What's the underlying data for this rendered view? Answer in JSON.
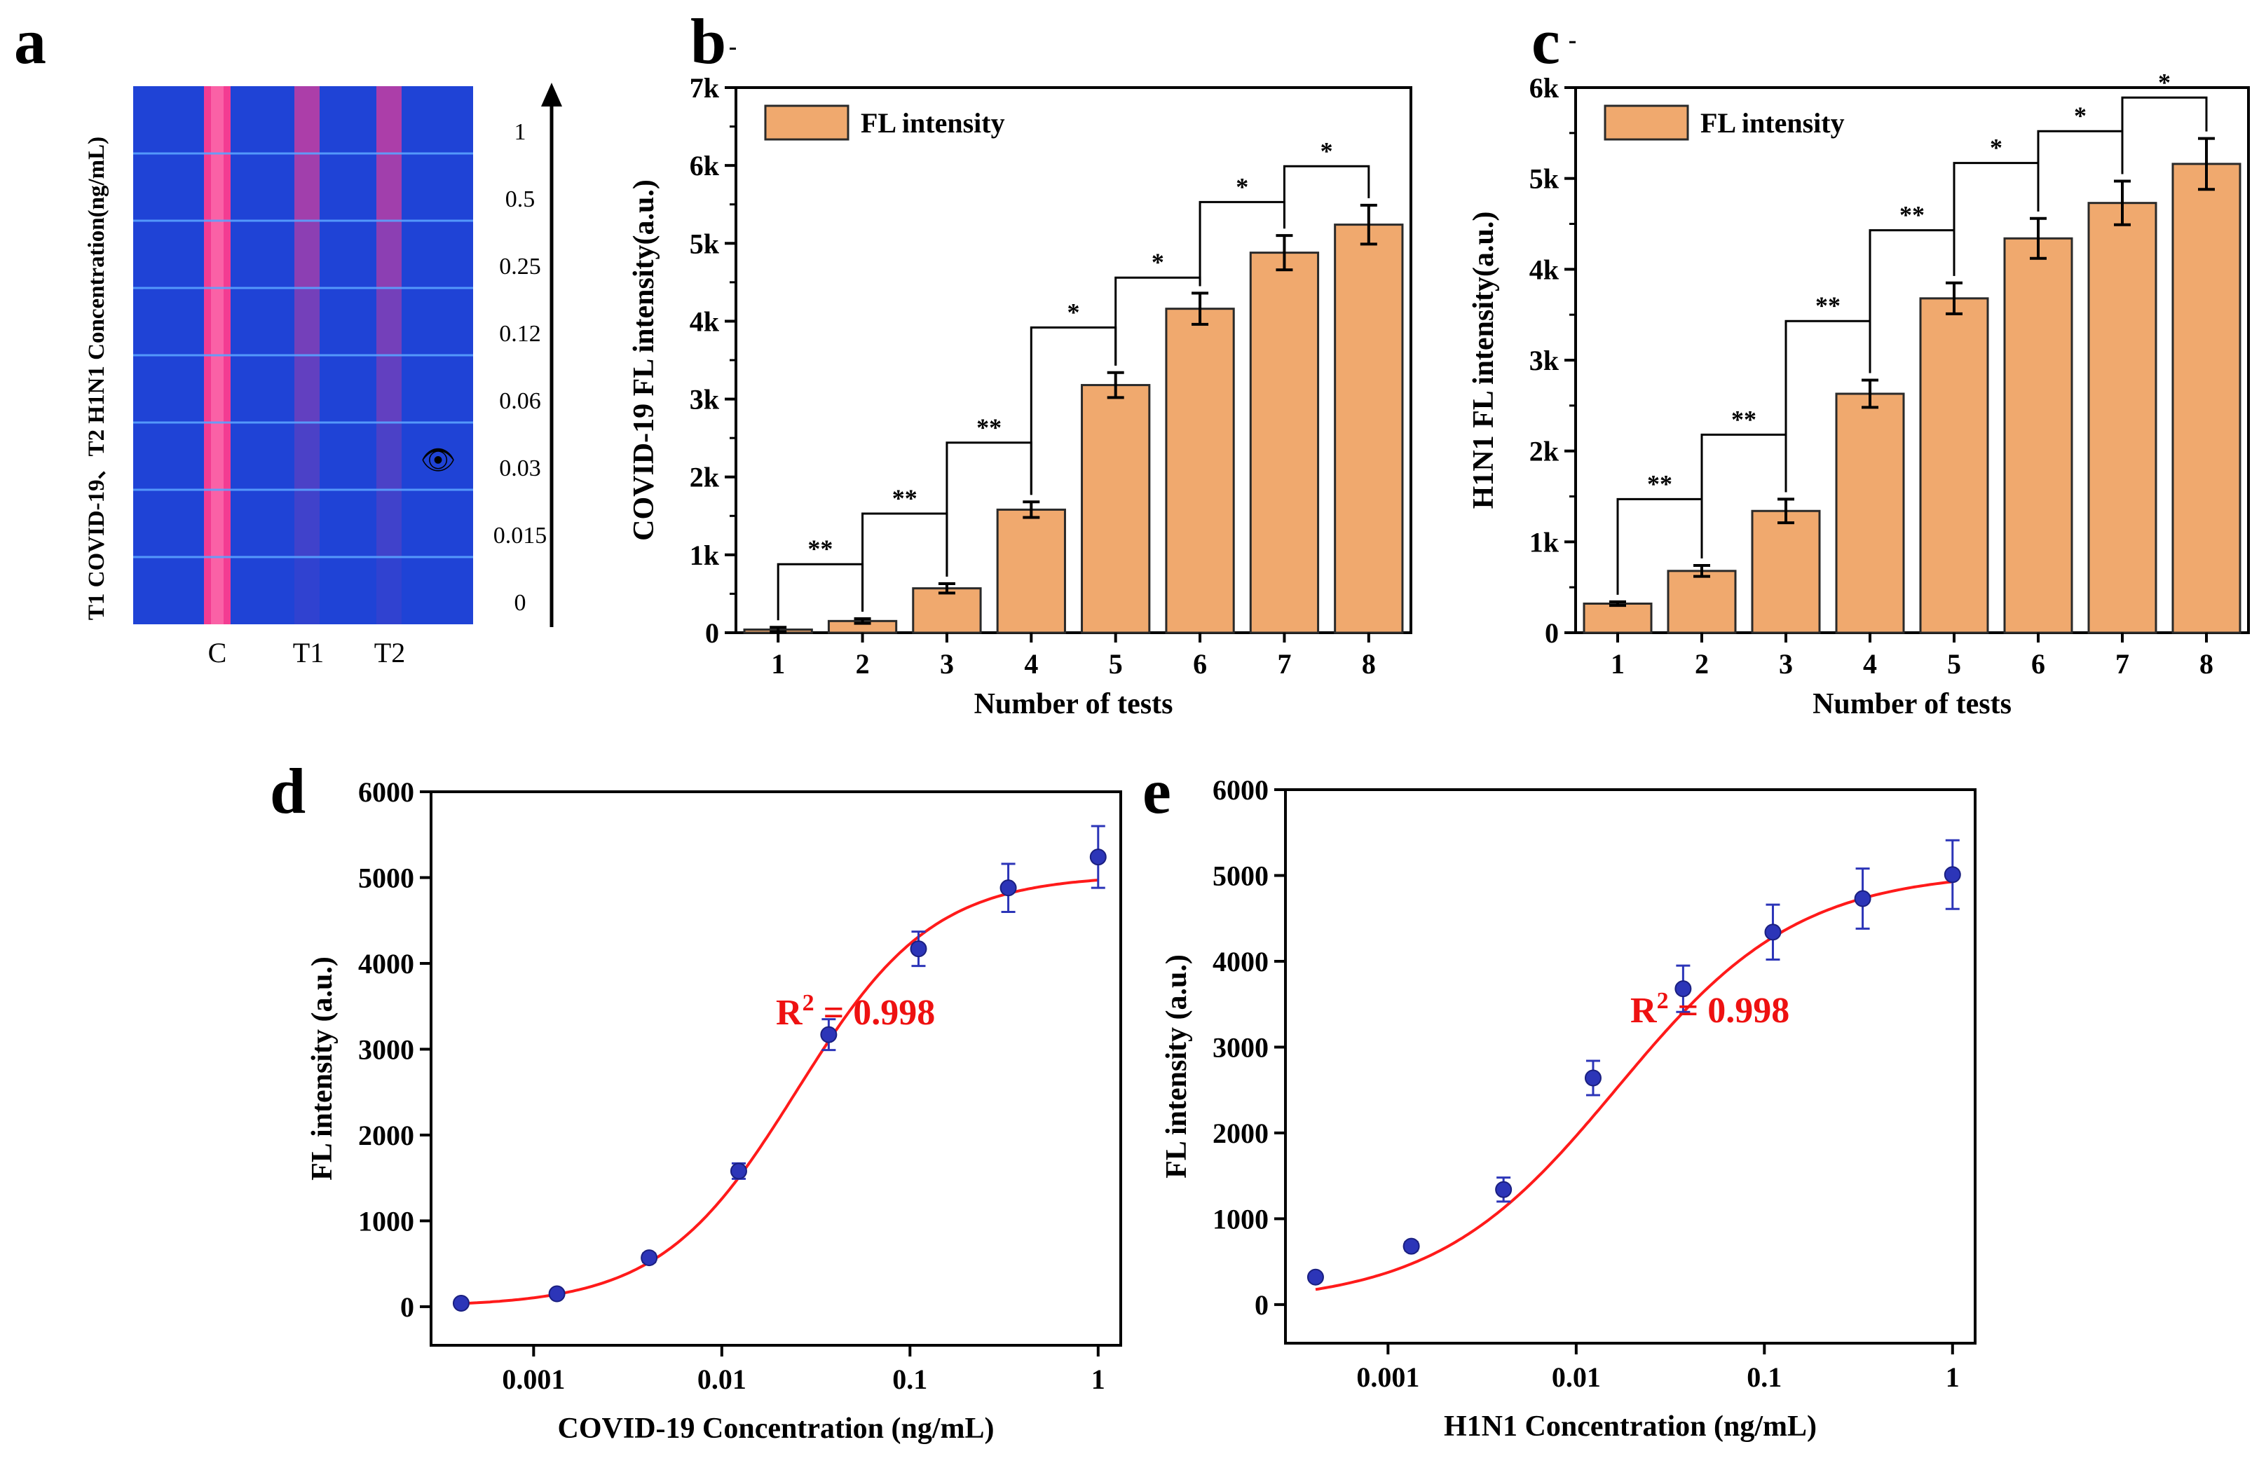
{
  "panel_letters": {
    "a": "a",
    "b": "b",
    "c": "c",
    "d": "d",
    "e": "e"
  },
  "colors": {
    "bar_fill": "#F0A96E",
    "bar_stroke": "#2a2a2a",
    "curve": "#ff1a1a",
    "point": "#2c35b8",
    "errbar": "#2c35b8",
    "r2": "#ee1111",
    "strip_bg": "#1f43d6",
    "strip_line": "#ff3c8e",
    "strip_divider": "#5aa2ff"
  },
  "chart_data": [
    {
      "panel": "a",
      "type": "other",
      "description_labels": {
        "vertical_title": "T1 COVID-19、T2 H1N1 Concentration(ng/mL)",
        "lanes": [
          "C",
          "T1",
          "T2"
        ],
        "concentrations": [
          "1",
          "0.5",
          "0.25",
          "0.12",
          "0.06",
          "0.03",
          "0.015",
          "0"
        ],
        "eye_symbol": "👁",
        "test_line_intensity": [
          1.0,
          0.9,
          0.75,
          0.55,
          0.4,
          0.22,
          0.12,
          0.0
        ]
      }
    },
    {
      "panel": "b",
      "type": "bar",
      "title": "",
      "xlabel": "Number of tests",
      "ylabel": "COVID-19 FL intensity(a.u.)",
      "legend": "FL intensity",
      "legend_position": "top-left",
      "categories": [
        "1",
        "2",
        "3",
        "4",
        "5",
        "6",
        "7",
        "8"
      ],
      "values": [
        40,
        150,
        570,
        1580,
        3180,
        4160,
        4880,
        5240
      ],
      "errors": [
        30,
        30,
        60,
        100,
        160,
        200,
        220,
        250
      ],
      "ylim": [
        0,
        7000
      ],
      "yticks": [
        0,
        1000,
        2000,
        3000,
        4000,
        5000,
        6000,
        7000
      ],
      "ytick_labels": [
        "0",
        "1k",
        "2k",
        "3k",
        "4k",
        "5k",
        "6k",
        "7k"
      ],
      "significance": [
        {
          "from": 0,
          "to": 1,
          "label": "**",
          "level": 880
        },
        {
          "from": 1,
          "to": 2,
          "label": "**",
          "level": 1530
        },
        {
          "from": 2,
          "to": 3,
          "label": "**",
          "level": 2440
        },
        {
          "from": 3,
          "to": 4,
          "label": "*",
          "level": 3920
        },
        {
          "from": 4,
          "to": 5,
          "label": "*",
          "level": 4560
        },
        {
          "from": 5,
          "to": 6,
          "label": "*",
          "level": 5530
        },
        {
          "from": 6,
          "to": 7,
          "label": "*",
          "level": 5990
        }
      ]
    },
    {
      "panel": "c",
      "type": "bar",
      "title": "",
      "xlabel": "Number of tests",
      "ylabel": "H1N1 FL intensity(a.u.)",
      "legend": "FL intensity",
      "legend_position": "top-left",
      "categories": [
        "1",
        "2",
        "3",
        "4",
        "5",
        "6",
        "7",
        "8"
      ],
      "values": [
        320,
        680,
        1340,
        2630,
        3680,
        4340,
        4730,
        5160
      ],
      "errors": [
        20,
        60,
        130,
        150,
        170,
        220,
        240,
        280
      ],
      "ylim": [
        0,
        6000
      ],
      "yticks": [
        0,
        1000,
        2000,
        3000,
        4000,
        5000,
        6000
      ],
      "ytick_labels": [
        "0",
        "1k",
        "2k",
        "3k",
        "4k",
        "5k",
        "6k"
      ],
      "significance": [
        {
          "from": 0,
          "to": 1,
          "label": "**",
          "level": 1470
        },
        {
          "from": 1,
          "to": 2,
          "label": "**",
          "level": 2180
        },
        {
          "from": 2,
          "to": 3,
          "label": "**",
          "level": 3430
        },
        {
          "from": 3,
          "to": 4,
          "label": "**",
          "level": 4430
        },
        {
          "from": 4,
          "to": 5,
          "label": "*",
          "level": 5170
        },
        {
          "from": 5,
          "to": 6,
          "label": "*",
          "level": 5520
        },
        {
          "from": 6,
          "to": 7,
          "label": "*",
          "level": 5890
        }
      ]
    },
    {
      "panel": "d",
      "type": "scatter",
      "title": "",
      "xlabel": "COVID-19 Concentration (ng/mL)",
      "ylabel": "FL intensity (a.u.)",
      "x_scale": "log",
      "x": [
        0.000412,
        0.00133,
        0.00411,
        0.0123,
        0.037,
        0.111,
        0.333,
        1
      ],
      "y": [
        40,
        150,
        570,
        1580,
        3170,
        4170,
        4880,
        5240
      ],
      "errors": [
        30,
        40,
        50,
        90,
        180,
        200,
        280,
        360
      ],
      "xticks": [
        0.001,
        0.01,
        0.1,
        1
      ],
      "xtick_labels": [
        "0.001",
        "0.01",
        "0.1",
        "1"
      ],
      "ylim": [
        -450,
        6000
      ],
      "yticks": [
        0,
        1000,
        2000,
        3000,
        4000,
        5000,
        6000
      ],
      "ytick_labels": [
        "0",
        "1000",
        "2000",
        "3000",
        "4000",
        "5000",
        "6000"
      ],
      "fit": {
        "A1": 0,
        "A2": 5030,
        "x0": 0.025,
        "p": 1.2
      },
      "annotation": {
        "prefix": "R",
        "sup": "2",
        "text": " = 0.998"
      }
    },
    {
      "panel": "e",
      "type": "scatter",
      "title": "",
      "xlabel": "H1N1 Concentration (ng/mL)",
      "ylabel": "FL intensity (a.u.)",
      "x_scale": "log",
      "x": [
        0.000412,
        0.00133,
        0.00411,
        0.0123,
        0.037,
        0.111,
        0.333,
        1
      ],
      "y": [
        320,
        680,
        1340,
        2640,
        3680,
        4340,
        4730,
        5010
      ],
      "errors": [
        30,
        50,
        140,
        200,
        270,
        320,
        350,
        400
      ],
      "xticks": [
        0.001,
        0.01,
        0.1,
        1
      ],
      "xtick_labels": [
        "0.001",
        "0.01",
        "0.1",
        "1"
      ],
      "ylim": [
        -450,
        6000
      ],
      "yticks": [
        0,
        1000,
        2000,
        3000,
        4000,
        5000,
        6000
      ],
      "ytick_labels": [
        "0",
        "1000",
        "2000",
        "3000",
        "4000",
        "5000",
        "6000"
      ],
      "fit": {
        "A1": 0,
        "A2": 5050,
        "x0": 0.0165,
        "p": 0.9
      },
      "annotation": {
        "prefix": "R",
        "sup": "2",
        "text": " = 0.998"
      }
    }
  ]
}
